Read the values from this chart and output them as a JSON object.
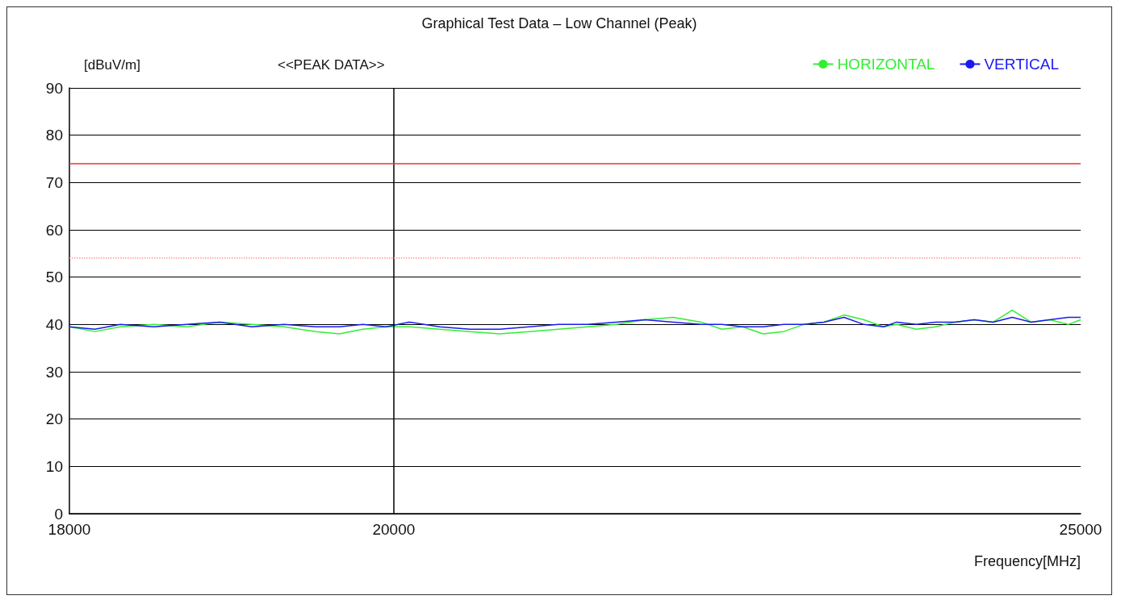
{
  "chart_data": {
    "type": "line",
    "title": "Graphical Test Data – Low Channel (Peak)",
    "subtitle": "<<PEAK DATA>>",
    "ylabel": "[dBuV/m]",
    "xlabel": "Frequency[MHz]",
    "log": "x",
    "xlim": [
      18000,
      25000
    ],
    "xticks": [
      18000,
      20000,
      25000
    ],
    "ylim": [
      0,
      90
    ],
    "yticks": [
      0,
      10,
      20,
      30,
      40,
      50,
      60,
      70,
      80,
      90
    ],
    "grid": "y",
    "legend": "top right",
    "marker": "none",
    "line_style": "solid",
    "series": [
      {
        "name": "HORIZONTAL",
        "color": "#33ee33",
        "x": [
          18000,
          18150,
          18300,
          18500,
          18700,
          18900,
          19100,
          19300,
          19500,
          19650,
          19800,
          19950,
          20100,
          20300,
          20500,
          20700,
          20900,
          21100,
          21300,
          21500,
          21700,
          21900,
          22100,
          22250,
          22400,
          22550,
          22700,
          22850,
          23000,
          23150,
          23300,
          23450,
          23550,
          23700,
          23850,
          24000,
          24150,
          24300,
          24450,
          24600,
          24750,
          24900,
          25000
        ],
        "values": [
          39.5,
          38.5,
          39.5,
          40,
          39.5,
          40.5,
          40,
          39.5,
          38.5,
          38,
          39,
          39.5,
          39.5,
          39,
          38.5,
          38,
          38.5,
          39,
          39.5,
          40,
          41,
          41.5,
          40.5,
          39,
          39.5,
          38,
          38.5,
          40,
          40.5,
          42,
          41,
          39.5,
          40,
          39,
          39.5,
          40.5,
          41,
          40.5,
          43,
          40.5,
          41,
          40,
          41
        ]
      },
      {
        "name": "VERTICAL",
        "color": "#1a1aee",
        "x": [
          18000,
          18150,
          18300,
          18500,
          18700,
          18900,
          19100,
          19300,
          19500,
          19650,
          19800,
          19950,
          20100,
          20300,
          20500,
          20700,
          20900,
          21100,
          21300,
          21500,
          21700,
          21900,
          22100,
          22250,
          22400,
          22550,
          22700,
          22850,
          23000,
          23150,
          23300,
          23450,
          23550,
          23700,
          23850,
          24000,
          24150,
          24300,
          24450,
          24600,
          24750,
          24900,
          25000
        ],
        "values": [
          39.5,
          39,
          40,
          39.5,
          40,
          40.5,
          39.5,
          40,
          39.5,
          39.5,
          40,
          39.5,
          40.5,
          39.5,
          39,
          39,
          39.5,
          40,
          40,
          40.5,
          41,
          40.5,
          40,
          40,
          39.5,
          39.5,
          40,
          40,
          40.5,
          41.5,
          40,
          39.5,
          40.5,
          40,
          40.5,
          40.5,
          41,
          40.5,
          41.5,
          40.5,
          41,
          41.5,
          41.5
        ]
      }
    ],
    "ref_lines": [
      {
        "axis": "x",
        "value": 20000,
        "label": null,
        "color": "#000000",
        "line_style": "solid"
      },
      {
        "axis": "y",
        "value": 74,
        "label": null,
        "color": "#ee3333",
        "line_style": "solid"
      },
      {
        "axis": "y",
        "value": 54,
        "label": null,
        "color": "#ff9999",
        "line_style": "dotted"
      }
    ]
  }
}
